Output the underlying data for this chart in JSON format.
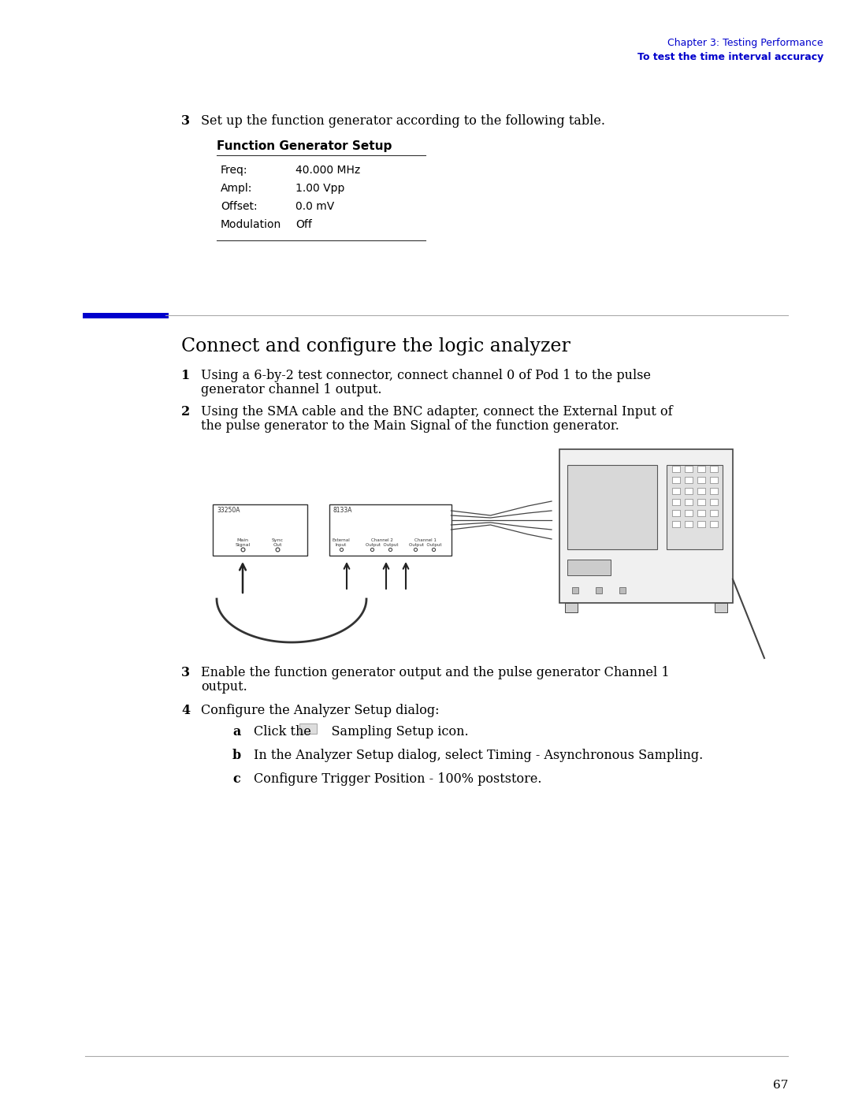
{
  "page_bg": "#ffffff",
  "header_line1": "Chapter 3: Testing Performance",
  "header_line2": "To test the time interval accuracy",
  "header_color": "#0000cc",
  "header_line2_bold": true,
  "step3_number": "3",
  "step3_text": "Set up the function generator according to the following table.",
  "table_title": "Function Generator Setup",
  "table_rows": [
    [
      "Freq:",
      "40.000 MHz"
    ],
    [
      "Ampl:",
      "1.00 Vpp"
    ],
    [
      "Offset:",
      "0.0 mV"
    ],
    [
      "Modulation",
      "Off"
    ]
  ],
  "section_title": "Connect and configure the logic analyzer",
  "step1_number": "1",
  "step1_text": "Using a 6-by-2 test connector, connect channel 0 of Pod 1 to the pulse\ngenerator channel 1 output.",
  "step2_number": "2",
  "step2_text": "Using the SMA cable and the BNC adapter, connect the External Input of\nthe pulse generator to the Main Signal of the function generator.",
  "step3b_number": "3",
  "step3b_text": "Enable the function generator output and the pulse generator Channel 1\noutput.",
  "step4_number": "4",
  "step4_text": "Configure the Analyzer Setup dialog:",
  "step4a_letter": "a",
  "step4a_text": "Click the     Sampling Setup icon.",
  "step4b_letter": "b",
  "step4b_text": "In the Analyzer Setup dialog, select Timing - Asynchronous Sampling.",
  "step4c_letter": "c",
  "step4c_text": "Configure Trigger Position - 100% poststore.",
  "page_number": "67",
  "blue_bar_color": "#0000cc",
  "gray_line_color": "#888888",
  "text_color": "#000000",
  "body_font_size": 10.5,
  "small_font_size": 9
}
